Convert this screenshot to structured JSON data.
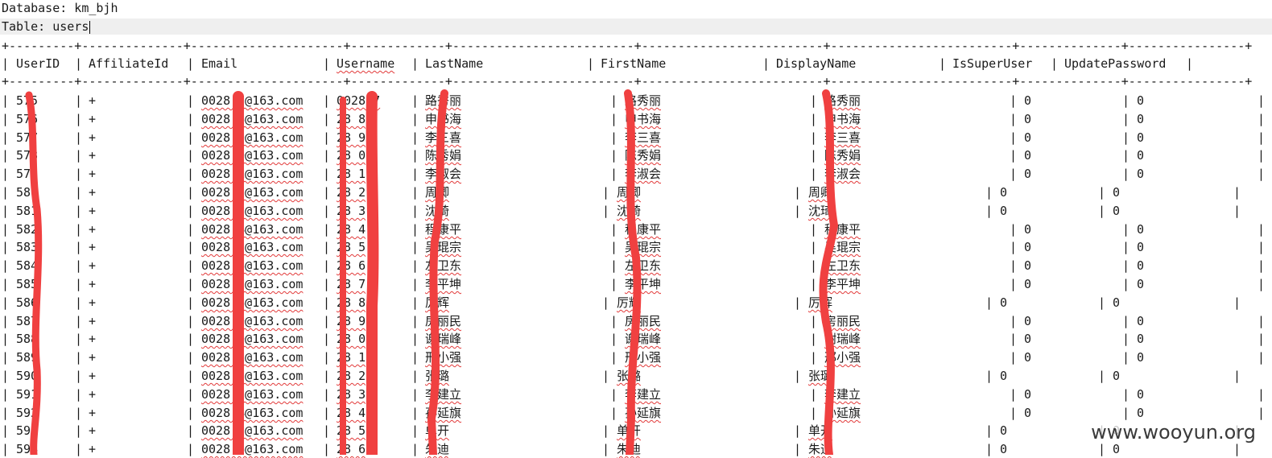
{
  "database_label": "Database: km_bjh",
  "table_label": "Table: users",
  "border_top": "+---------+--------------+---------------------+-------------+-------------------------+-------------------------+-------------------------+--------------+----------------+",
  "border_mid": "+---------+--------------+---------------------+-------------+-------------------------+-------------------------+-------------------------+--------------+----------------+",
  "columns": [
    "UserID",
    "AffiliateId",
    "Email",
    "Username",
    "LastName",
    "FirstName",
    "DisplayName",
    "IsSuperUser",
    "UpdatePassword"
  ],
  "rows": [
    {
      "id": "575",
      "aff": "+",
      "email": "0028 7@163.com",
      "user": "0028 7",
      "last": "路秀丽",
      "first": "路秀丽",
      "display": "路秀丽",
      "su": "0",
      "up": "0"
    },
    {
      "id": "576",
      "aff": "+",
      "email": "0028 8@163.com",
      "user": "28 8",
      "last": "申书海",
      "first": "申书海",
      "display": "申书海",
      "su": "0",
      "up": "0"
    },
    {
      "id": "577",
      "aff": "+",
      "email": "0028 9@163.com",
      "user": "28 9",
      "last": "李三喜",
      "first": "李三喜",
      "display": "李三喜",
      "su": "0",
      "up": "0"
    },
    {
      "id": "578",
      "aff": "+",
      "email": "0028 0@163.com",
      "user": "28 0",
      "last": "陈秀娟",
      "first": "陈秀娟",
      "display": "陈秀娟",
      "su": "0",
      "up": "0"
    },
    {
      "id": "579",
      "aff": "+",
      "email": "0028 1@163.com",
      "user": "28 1",
      "last": "李淑会",
      "first": "李淑会",
      "display": "李淑会",
      "su": "0",
      "up": "0"
    },
    {
      "id": "580",
      "aff": "+",
      "email": "0028 2@163.com",
      "user": "28 2",
      "last": "周卿",
      "first": "周卿",
      "display": "周卿",
      "su": "0",
      "up": "0"
    },
    {
      "id": "581",
      "aff": "+",
      "email": "0028 3@163.com",
      "user": "28 3",
      "last": "沈琦",
      "first": "沈琦",
      "display": "沈琦",
      "su": "0",
      "up": "0"
    },
    {
      "id": "582",
      "aff": "+",
      "email": "0028 4@163.com",
      "user": "28 4",
      "last": "程康平",
      "first": "程康平",
      "display": "程康平",
      "su": "0",
      "up": "0"
    },
    {
      "id": "583",
      "aff": "+",
      "email": "0028 5@163.com",
      "user": "28 5",
      "last": "吴琨宗",
      "first": "吴琨宗",
      "display": "吴琨宗",
      "su": "0",
      "up": "0"
    },
    {
      "id": "584",
      "aff": "+",
      "email": "0028 6@163.com",
      "user": "28 6",
      "last": "左卫东",
      "first": "左卫东",
      "display": "左卫东",
      "su": "0",
      "up": "0"
    },
    {
      "id": "585",
      "aff": "+",
      "email": "0028 7@163.com",
      "user": "28 7",
      "last": "李平坤",
      "first": "李平坤",
      "display": "李平坤",
      "su": "0",
      "up": "0"
    },
    {
      "id": "586",
      "aff": "+",
      "email": "0028 8@163.com",
      "user": "28 8",
      "last": "厉辉",
      "first": "厉辉",
      "display": "厉辉",
      "su": "0",
      "up": "0"
    },
    {
      "id": "587",
      "aff": "+",
      "email": "0028 9@163.com",
      "user": "28 9",
      "last": "房丽民",
      "first": "房丽民",
      "display": "房丽民",
      "su": "0",
      "up": "0"
    },
    {
      "id": "588",
      "aff": "+",
      "email": "0028 0@163.com",
      "user": "28 0",
      "last": "谢瑞峰",
      "first": "谢瑞峰",
      "display": "谢瑞峰",
      "su": "0",
      "up": "0"
    },
    {
      "id": "589",
      "aff": "+",
      "email": "0028 1@163.com",
      "user": "28 1",
      "last": "邢小强",
      "first": "邢小强",
      "display": "邢小强",
      "su": "0",
      "up": "0"
    },
    {
      "id": "590",
      "aff": "+",
      "email": "0028 2@163.com",
      "user": "28 2",
      "last": "张璐",
      "first": "张璐",
      "display": "张璐",
      "su": "0",
      "up": "0"
    },
    {
      "id": "591",
      "aff": "+",
      "email": "0028 3@163.com",
      "user": "28 3",
      "last": "李建立",
      "first": "李建立",
      "display": "李建立",
      "su": "0",
      "up": "0"
    },
    {
      "id": "592",
      "aff": "+",
      "email": "0028 4@163.com",
      "user": "28 4",
      "last": "孙延旗",
      "first": "孙延旗",
      "display": "孙延旗",
      "su": "0",
      "up": "0"
    },
    {
      "id": "593",
      "aff": "+",
      "email": "0028 5@163.com",
      "user": "28 5",
      "last": "单开",
      "first": "单开",
      "display": "单开",
      "su": "0",
      "up": "0"
    },
    {
      "id": "594",
      "aff": "+",
      "email": "0028 6@163.com",
      "user": "28 6",
      "last": "朱迪",
      "first": "朱迪",
      "display": "朱迪",
      "su": "0",
      "up": "0"
    }
  ],
  "watermark": "www.wooyun.org",
  "redaction_color": "#f04040"
}
